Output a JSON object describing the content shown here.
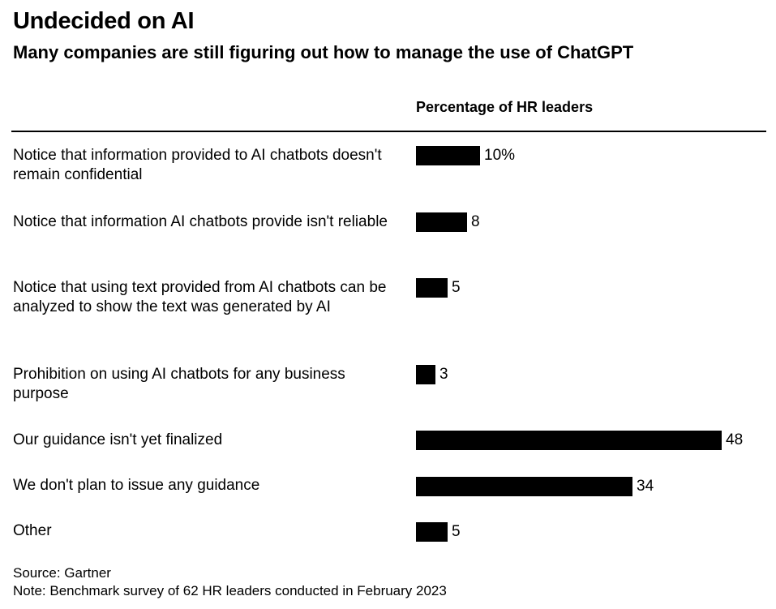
{
  "title": "Undecided on AI",
  "subtitle": "Many companies are still figuring out how to manage the use of ChatGPT",
  "column_header": "Percentage of HR leaders",
  "source": "Source: Gartner",
  "note": "Note: Benchmark survey of 62 HR leaders conducted in February 2023",
  "chart_data": {
    "type": "bar",
    "orientation": "horizontal",
    "title": "Undecided on AI",
    "subtitle": "Many companies are still figuring out how to manage the use of ChatGPT",
    "value_header": "Percentage of HR leaders",
    "categories": [
      "Notice that information provided to AI chatbots doesn't remain confidential",
      "Notice that information AI chatbots provide isn't reliable",
      "Notice that using text provided from AI chatbots can be analyzed to show the text was generated by AI",
      "Prohibition on using AI chatbots for any business purpose",
      "Our guidance isn't yet finalized",
      "We don't plan to issue any guidance",
      "Other"
    ],
    "values": [
      10,
      8,
      5,
      3,
      48,
      34,
      5
    ],
    "value_labels": [
      "10%",
      "8",
      "5",
      "3",
      "48",
      "34",
      "5"
    ],
    "bar_color": "#000000",
    "grid": false
  }
}
